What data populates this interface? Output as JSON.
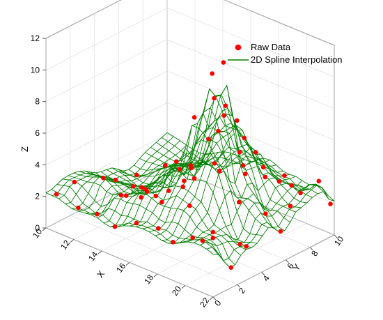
{
  "chart_data": {
    "type": "scatter",
    "subtype": "3d-scatter-with-spline-surface",
    "xlabel": "X",
    "ylabel": "Y",
    "zlabel": "Z",
    "xlim": [
      10,
      22
    ],
    "ylim": [
      0,
      10
    ],
    "zlim": [
      0,
      12
    ],
    "x_ticks": [
      "10",
      "12",
      "14",
      "16",
      "18",
      "20",
      "22"
    ],
    "y_ticks": [
      "0",
      "2",
      "4",
      "6",
      "8",
      "10"
    ],
    "z_ticks": [
      "0",
      "2",
      "4",
      "6",
      "8",
      "10",
      "12"
    ],
    "grid": true,
    "legend": {
      "position": "top-right",
      "entries": [
        "Raw Data",
        "2D Spline Interpolation"
      ]
    },
    "colors": {
      "points": "#ff0000",
      "surface": "#008000",
      "box": "#555555",
      "grid": "#d9d9d9"
    },
    "series": [
      {
        "name": "Raw Data",
        "marker": "circle",
        "points": [
          [
            10.5,
            0.3,
            2.2
          ],
          [
            11.0,
            1.2,
            2.8
          ],
          [
            11.8,
            0.6,
            1.7
          ],
          [
            12.2,
            2.2,
            3.1
          ],
          [
            12.8,
            1.0,
            1.5
          ],
          [
            13.5,
            2.6,
            2.3
          ],
          [
            14.0,
            1.6,
            2.9
          ],
          [
            14.6,
            0.4,
            1.6
          ],
          [
            15.2,
            3.1,
            2.7
          ],
          [
            15.6,
            1.9,
            3.6
          ],
          [
            16.0,
            4.5,
            3.4
          ],
          [
            16.4,
            3.4,
            5.2
          ],
          [
            16.8,
            5.6,
            5.9
          ],
          [
            17.0,
            4.2,
            7.9
          ],
          [
            17.3,
            6.3,
            7.3
          ],
          [
            17.5,
            5.1,
            10.5
          ],
          [
            17.7,
            5.8,
            11.0
          ],
          [
            17.9,
            4.8,
            9.2
          ],
          [
            18.2,
            5.4,
            8.6
          ],
          [
            18.5,
            6.6,
            6.2
          ],
          [
            18.8,
            3.8,
            5.8
          ],
          [
            19.0,
            6.1,
            4.3
          ],
          [
            19.3,
            7.4,
            3.7
          ],
          [
            19.6,
            4.9,
            3.2
          ],
          [
            19.9,
            2.4,
            2.4
          ],
          [
            20.2,
            6.4,
            2.1
          ],
          [
            20.5,
            8.2,
            3.3
          ],
          [
            20.8,
            3.6,
            1.5
          ],
          [
            21.2,
            7.3,
            2.6
          ],
          [
            21.5,
            9.3,
            3.5
          ],
          [
            21.8,
            5.8,
            1.8
          ],
          [
            21.9,
            9.8,
            2.0
          ],
          [
            15.0,
            6.5,
            2.4
          ],
          [
            14.2,
            5.3,
            1.8
          ],
          [
            13.0,
            4.4,
            1.3
          ],
          [
            12.0,
            5.6,
            1.1
          ],
          [
            11.0,
            4.6,
            1.6
          ],
          [
            10.6,
            6.8,
            0.9
          ],
          [
            11.6,
            8.0,
            1.4
          ],
          [
            12.6,
            9.0,
            1.2
          ],
          [
            13.6,
            7.8,
            2.2
          ],
          [
            14.8,
            8.8,
            1.9
          ],
          [
            15.8,
            9.6,
            2.3
          ],
          [
            16.6,
            8.4,
            3.9
          ],
          [
            17.6,
            9.2,
            3.0
          ],
          [
            18.6,
            9.8,
            2.6
          ],
          [
            16.2,
            7.1,
            5.6
          ],
          [
            17.1,
            7.6,
            6.4
          ],
          [
            18.1,
            8.0,
            4.6
          ],
          [
            19.1,
            8.8,
            2.8
          ],
          [
            20.1,
            9.4,
            2.2
          ],
          [
            13.3,
            3.4,
            2.5
          ],
          [
            14.6,
            2.9,
            3.0
          ],
          [
            15.4,
            4.8,
            3.8
          ],
          [
            16.4,
            2.2,
            3.1
          ],
          [
            17.4,
            2.8,
            4.2
          ],
          [
            18.4,
            2.2,
            3.6
          ],
          [
            19.4,
            1.3,
            2.3
          ],
          [
            20.6,
            1.6,
            2.6
          ],
          [
            21.6,
            3.2,
            1.8
          ],
          [
            17.2,
            1.0,
            2.2
          ],
          [
            18.6,
            0.6,
            2.0
          ],
          [
            15.8,
            0.8,
            2.1
          ],
          [
            20.9,
            0.4,
            3.0
          ],
          [
            21.9,
            1.6,
            1.2
          ]
        ]
      },
      {
        "name": "2D Spline Interpolation",
        "style": "wireframe-mesh"
      }
    ]
  }
}
